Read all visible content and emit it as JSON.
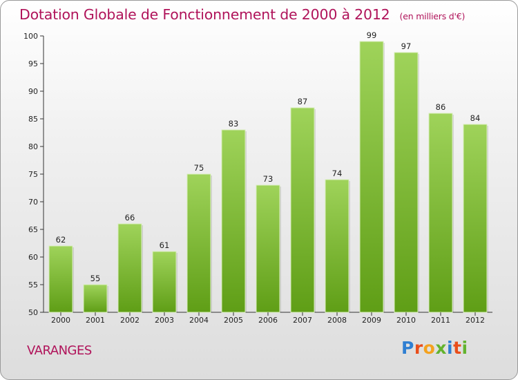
{
  "header": {
    "title": "Dotation Globale de Fonctionnement de 2000 à 2012",
    "subtitle": "(en milliers d'€)"
  },
  "footer": {
    "place": "VARANGES",
    "logo": {
      "letters": [
        "P",
        "r",
        "o",
        "x",
        "i",
        "t",
        "i"
      ],
      "colors": [
        "#2f7fd2",
        "#e94e1b",
        "#f4a21f",
        "#63b32e",
        "#2f7fd2",
        "#e94e1b",
        "#63b32e"
      ]
    }
  },
  "colors": {
    "title": "#b0135a",
    "bar_top": "#9fd35a",
    "bar_bottom": "#5f9e16",
    "axis": "#333333"
  },
  "chart_data": {
    "type": "bar",
    "title": "Dotation Globale de Fonctionnement de 2000 à 2012",
    "subtitle": "(en milliers d'€)",
    "categories": [
      "2000",
      "2001",
      "2002",
      "2003",
      "2004",
      "2005",
      "2006",
      "2007",
      "2008",
      "2009",
      "2010",
      "2011",
      "2012"
    ],
    "values": [
      62,
      55,
      66,
      61,
      75,
      83,
      73,
      87,
      74,
      99,
      97,
      86,
      84
    ],
    "ylim": [
      50,
      100
    ],
    "yticks": [
      50,
      55,
      60,
      65,
      70,
      75,
      80,
      85,
      90,
      95,
      100
    ],
    "grid": false,
    "legend": "none",
    "data_labels": true
  }
}
